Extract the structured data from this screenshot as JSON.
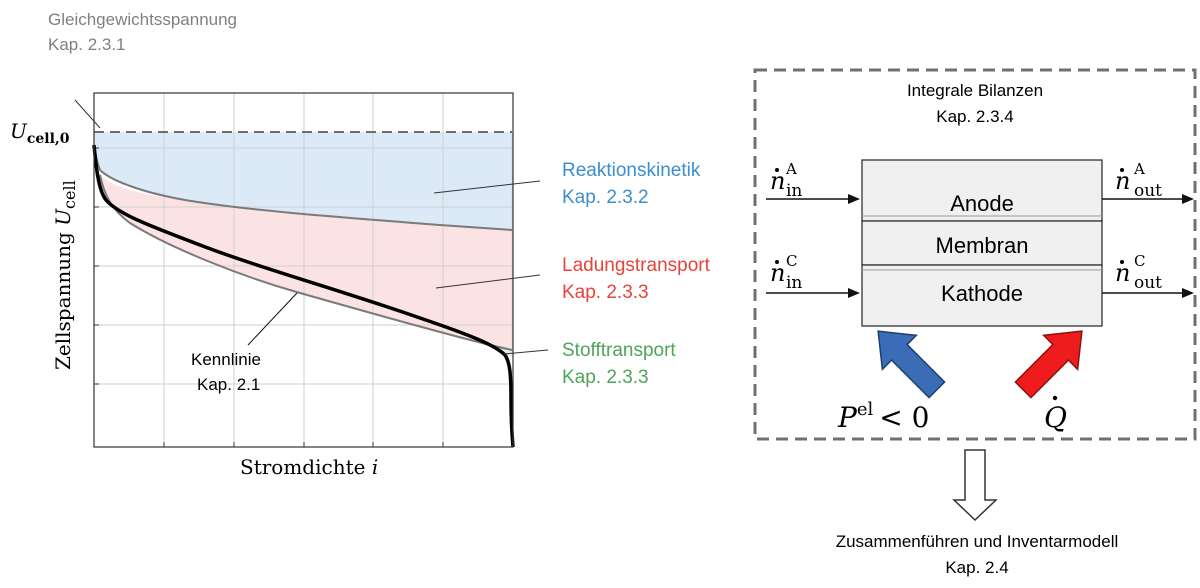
{
  "chart": {
    "equilibrium_label": "Gleichgewichtsspannung",
    "equilibrium_ref": "Kap. 2.3.1",
    "u_cell0_main": "U",
    "u_cell0_sub": "cell,0",
    "ylabel_text": "Zellspannung ",
    "ylabel_var": "U",
    "ylabel_sub": "cell",
    "xlabel_text": "Stromdichte ",
    "xlabel_var": "i",
    "kennlinie_label": "Kennlinie",
    "kennlinie_ref": "Kap. 2.1",
    "losses": [
      {
        "label": "Reaktionskinetik",
        "ref": "Kap. 2.3.2",
        "color": "#3b8ed0",
        "fill": "#dceaf7"
      },
      {
        "label": "Ladungstransport",
        "ref": "Kap. 2.3.3",
        "color": "#e8433b",
        "fill": "#fbe3e3"
      },
      {
        "label": "Stofftransport",
        "ref": "Kap. 2.3.3",
        "color": "#4fa35a",
        "fill": "#e3f1e4"
      }
    ]
  },
  "diagram": {
    "title": "Integrale Bilanzen",
    "title_ref": "Kap. 2.3.4",
    "layers": [
      "Anode",
      "Membran",
      "Kathode"
    ],
    "inputs": [
      {
        "symbol": "n",
        "sup": "A",
        "sub": "in"
      },
      {
        "symbol": "n",
        "sup": "C",
        "sub": "in"
      }
    ],
    "outputs": [
      {
        "symbol": "n",
        "sup": "A",
        "sub": "out"
      },
      {
        "symbol": "n",
        "sup": "C",
        "sub": "out"
      }
    ],
    "power_main": "P",
    "power_sup": "el",
    "power_rel": "< 0",
    "heat_symbol": "Q",
    "power_arrow_color": "#3a6db5",
    "heat_arrow_color": "#ee1c1c",
    "result_label": "Zusammenführen und Inventarmodell",
    "result_ref": "Kap. 2.4"
  }
}
